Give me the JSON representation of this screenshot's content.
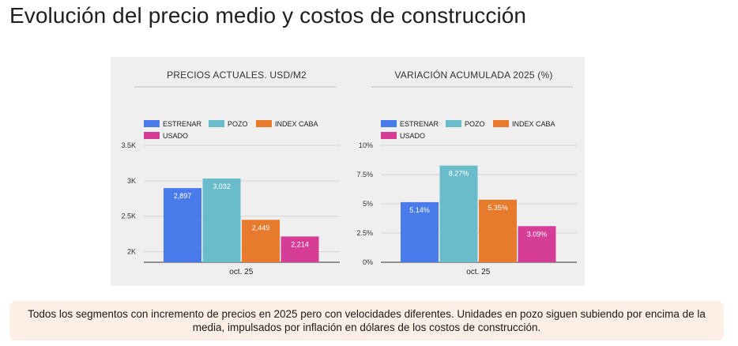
{
  "page": {
    "title": "Evolución del precio medio y costos de construcción",
    "note": "Todos los segmentos con incremento de precios en 2025 pero con velocidades diferentes. Unidades en pozo siguen subiendo por encima de la media, impulsados por inflación en dólares de los costos de construcción."
  },
  "chart_data": [
    {
      "type": "bar",
      "title": "PRECIOS ACTUALES. USD/M2",
      "categories": [
        "oct. 25"
      ],
      "series": [
        {
          "name": "ESTRENAR",
          "values": [
            2897
          ],
          "label": "2,897",
          "color": "#4a7bea"
        },
        {
          "name": "POZO",
          "values": [
            3032
          ],
          "label": "3,032",
          "color": "#6abccb"
        },
        {
          "name": "INDEX CABA",
          "values": [
            2449
          ],
          "label": "2,449",
          "color": "#e87a2d"
        },
        {
          "name": "USADO",
          "values": [
            2214
          ],
          "label": "2,214",
          "color": "#d63d96"
        }
      ],
      "ylim": [
        1850,
        3500
      ],
      "yticks": [
        2000,
        2500,
        3000,
        3500
      ],
      "ytick_labels": [
        "2K",
        "2.5K",
        "3K",
        "3.5K"
      ],
      "grid": true,
      "legend": "top-left",
      "xlabel": "",
      "ylabel": ""
    },
    {
      "type": "bar",
      "title": "VARIACIÓN ACUMULADA 2025 (%)",
      "categories": [
        "oct. 25"
      ],
      "series": [
        {
          "name": "ESTRENAR",
          "values": [
            5.14
          ],
          "label": "5.14%",
          "color": "#4a7bea"
        },
        {
          "name": "POZO",
          "values": [
            8.27
          ],
          "label": "8.27%",
          "color": "#6abccb"
        },
        {
          "name": "INDEX CABA",
          "values": [
            5.35
          ],
          "label": "5.35%",
          "color": "#e87a2d"
        },
        {
          "name": "USADO",
          "values": [
            3.09
          ],
          "label": "3.09%",
          "color": "#d63d96"
        }
      ],
      "ylim": [
        0,
        10
      ],
      "yticks": [
        0,
        2.5,
        5,
        7.5,
        10
      ],
      "ytick_labels": [
        "0%",
        "2.5%",
        "5%",
        "7.5%",
        "10%"
      ],
      "grid": true,
      "legend": "top-left",
      "xlabel": "",
      "ylabel": ""
    }
  ]
}
